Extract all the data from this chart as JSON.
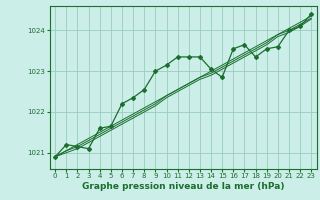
{
  "background_color": "#cceee8",
  "plot_bg_color": "#cceee8",
  "grid_color": "#99ccbb",
  "line_color_main": "#1a6e2e",
  "title": "Graphe pression niveau de la mer (hPa)",
  "ylabel_vals": [
    1021,
    1022,
    1023,
    1024
  ],
  "xlim": [
    -0.5,
    23.5
  ],
  "ylim": [
    1020.6,
    1024.6
  ],
  "x_ticks": [
    0,
    1,
    2,
    3,
    4,
    5,
    6,
    7,
    8,
    9,
    10,
    11,
    12,
    13,
    14,
    15,
    16,
    17,
    18,
    19,
    20,
    21,
    22,
    23
  ],
  "title_fontsize": 6.5,
  "tick_fontsize": 5.0,
  "label_color": "#1a6e2e",
  "series_linear": {
    "x": [
      0,
      1,
      2,
      3,
      4,
      5,
      6,
      7,
      8,
      9,
      10,
      11,
      12,
      13,
      14,
      15,
      16,
      17,
      18,
      19,
      20,
      21,
      22,
      23
    ],
    "y": [
      1020.9,
      1021.05,
      1021.2,
      1021.35,
      1021.5,
      1021.65,
      1021.8,
      1021.95,
      1022.1,
      1022.25,
      1022.4,
      1022.55,
      1022.7,
      1022.85,
      1023.0,
      1023.15,
      1023.3,
      1023.45,
      1023.6,
      1023.75,
      1023.9,
      1024.05,
      1024.2,
      1024.35
    ]
  },
  "series_linear2": {
    "x": [
      0,
      1,
      2,
      3,
      4,
      5,
      6,
      7,
      8,
      9,
      10,
      11,
      12,
      13,
      14,
      15,
      16,
      17,
      18,
      19,
      20,
      21,
      22,
      23
    ],
    "y": [
      1020.9,
      1021.05,
      1021.15,
      1021.3,
      1021.45,
      1021.6,
      1021.75,
      1021.9,
      1022.05,
      1022.2,
      1022.4,
      1022.55,
      1022.7,
      1022.85,
      1022.95,
      1023.1,
      1023.25,
      1023.4,
      1023.55,
      1023.7,
      1023.9,
      1024.0,
      1024.15,
      1024.3
    ]
  },
  "series_linear3": {
    "x": [
      0,
      1,
      2,
      3,
      4,
      5,
      6,
      7,
      8,
      9,
      10,
      11,
      12,
      13,
      14,
      15,
      16,
      17,
      18,
      19,
      20,
      21,
      22,
      23
    ],
    "y": [
      1020.9,
      1021.0,
      1021.1,
      1021.25,
      1021.4,
      1021.55,
      1021.7,
      1021.85,
      1022.0,
      1022.15,
      1022.35,
      1022.5,
      1022.65,
      1022.8,
      1022.9,
      1023.05,
      1023.2,
      1023.35,
      1023.5,
      1023.65,
      1023.85,
      1023.95,
      1024.1,
      1024.28
    ]
  },
  "series_volatile": {
    "x": [
      0,
      1,
      2,
      3,
      4,
      5,
      6,
      7,
      8,
      9,
      10,
      11,
      12,
      13,
      14,
      15,
      16,
      17,
      18,
      19,
      20,
      21,
      22,
      23
    ],
    "y": [
      1020.9,
      1021.2,
      1021.15,
      1021.1,
      1021.6,
      1021.65,
      1022.2,
      1022.35,
      1022.55,
      1023.0,
      1023.15,
      1023.35,
      1023.35,
      1023.35,
      1023.05,
      1022.85,
      1023.55,
      1023.65,
      1023.35,
      1023.55,
      1023.6,
      1024.0,
      1024.1,
      1024.4
    ]
  }
}
